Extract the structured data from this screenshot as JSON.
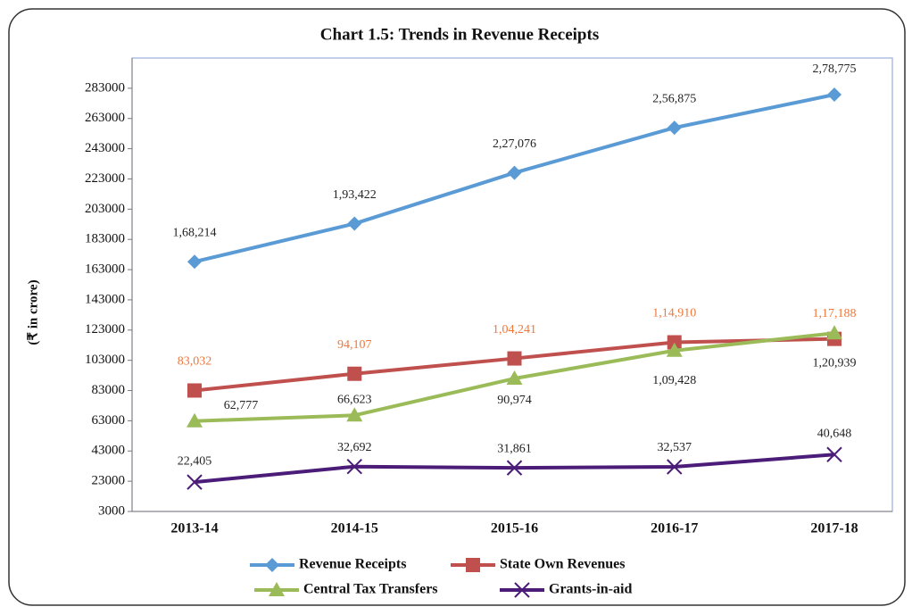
{
  "chart_data": {
    "type": "line",
    "title": "Chart 1.5: Trends in Revenue Receipts",
    "y_label": "(₹ in crore)",
    "categories": [
      "2013-14",
      "2014-15",
      "2015-16",
      "2016-17",
      "2017-18"
    ],
    "ylim": [
      3000,
      303000
    ],
    "yticks": [
      3000,
      23000,
      43000,
      63000,
      83000,
      103000,
      123000,
      143000,
      163000,
      183000,
      203000,
      223000,
      243000,
      263000,
      283000
    ],
    "grid": false,
    "legend": "bottom",
    "series": [
      {
        "name": "Revenue Receipts",
        "color": "#5b9bd5",
        "marker": "diamond",
        "label_color": "#222222",
        "values": [
          168214,
          193422,
          227076,
          256875,
          278775
        ],
        "value_labels": [
          "1,68,214",
          "1,93,422",
          "2,27,076",
          "2,56,875",
          "2,78,775"
        ]
      },
      {
        "name": "State Own Revenues",
        "color": "#c0504d",
        "marker": "square",
        "label_color": "#f0763a",
        "values": [
          83032,
          94107,
          104241,
          114910,
          117188
        ],
        "value_labels": [
          "83,032",
          "94,107",
          "1,04,241",
          "1,14,910",
          "1,17,188"
        ]
      },
      {
        "name": "Central Tax Transfers",
        "color": "#9bbb59",
        "marker": "triangle",
        "label_color": "#222222",
        "values": [
          62777,
          66623,
          90974,
          109428,
          120939
        ],
        "value_labels": [
          "62,777",
          "66,623",
          "90,974",
          "1,09,428",
          "1,20,939"
        ]
      },
      {
        "name": "Grants-in-aid",
        "color": "#4b1c78",
        "marker": "x",
        "label_color": "#222222",
        "values": [
          22405,
          32692,
          31861,
          32537,
          40648
        ],
        "value_labels": [
          "22,405",
          "32,692",
          "31,861",
          "32,537",
          "40,648"
        ]
      }
    ]
  }
}
